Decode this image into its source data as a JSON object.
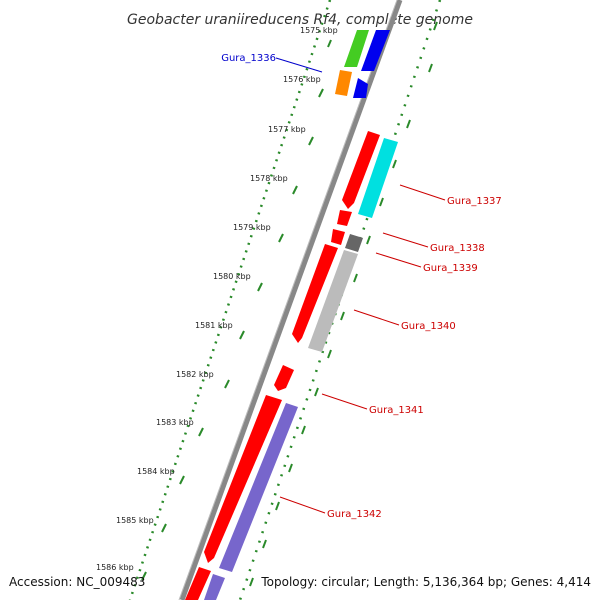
{
  "title": "Geobacter uraniireducens Rf4, complete genome",
  "footer": {
    "accession": "Accession: NC_009483",
    "info": "Topology: circular; Length: 5,136,364 bp; Genes: 4,414"
  },
  "kbp_ticks": [
    {
      "label": "1575 kbp"
    },
    {
      "label": "1576 kbp"
    },
    {
      "label": "1577 kbp"
    },
    {
      "label": "1578 kbp"
    },
    {
      "label": "1579 kbp"
    },
    {
      "label": "1580 kbp"
    },
    {
      "label": "1581 kbp"
    },
    {
      "label": "1582 kbp"
    },
    {
      "label": "1583 kbp"
    },
    {
      "label": "1584 kbp"
    },
    {
      "label": "1585 kbp"
    },
    {
      "label": "1586 kbp"
    }
  ],
  "gene_labels": [
    {
      "text": "Gura_1336",
      "color": "#0000cc"
    },
    {
      "text": "Gura_1337",
      "color": "#cc0000"
    },
    {
      "text": "Gura_1338",
      "color": "#cc0000"
    },
    {
      "text": "Gura_1339",
      "color": "#cc0000"
    },
    {
      "text": "Gura_1340",
      "color": "#cc0000"
    },
    {
      "text": "Gura_1341",
      "color": "#cc0000"
    },
    {
      "text": "Gura_1342",
      "color": "#cc0000"
    }
  ],
  "colors": {
    "backbone": "#888888",
    "dots": "#2a8a2a",
    "forward_gene": "#ff0000",
    "blue_gene": "#0000ee",
    "green_gene": "#44cc22",
    "orange_gene": "#ff8800",
    "cyan_gene": "#00e0e0",
    "gray_gene": "#bbbbbb",
    "dark_gray_gene": "#666666",
    "purple_gene": "#7766cc"
  }
}
